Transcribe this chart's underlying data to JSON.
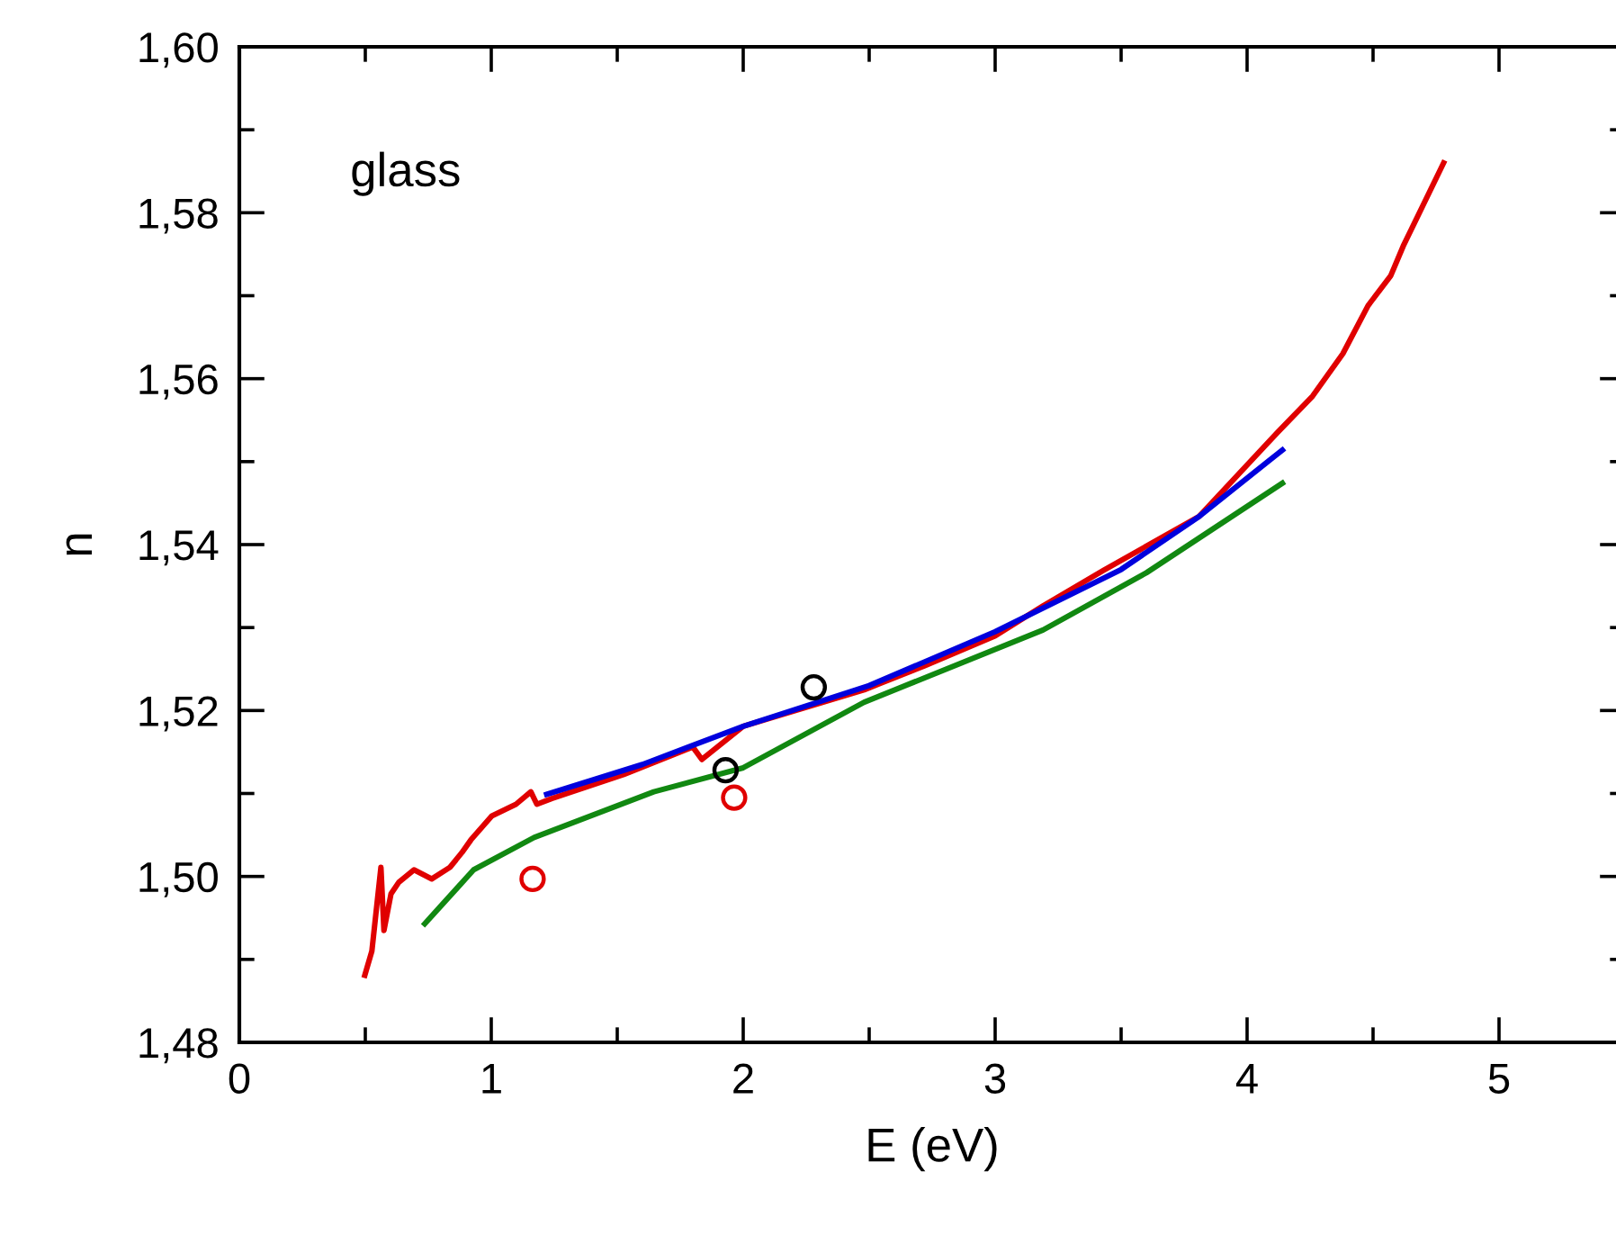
{
  "chart_data": {
    "type": "line",
    "xlabel": "E (eV)",
    "ylabel": "n",
    "annotations": [
      "glass"
    ],
    "xlim": [
      0,
      5.5
    ],
    "ylim": [
      1.48,
      1.6
    ],
    "xticks": [
      0,
      1,
      2,
      3,
      4,
      5
    ],
    "yticks": [
      {
        "value": 1.48,
        "label": "1,48"
      },
      {
        "value": 1.5,
        "label": "1,50"
      },
      {
        "value": 1.52,
        "label": "1,52"
      },
      {
        "value": 1.54,
        "label": "1,54"
      },
      {
        "value": 1.56,
        "label": "1,56"
      },
      {
        "value": 1.58,
        "label": "1,58"
      },
      {
        "value": 1.6,
        "label": "1,60"
      }
    ],
    "grid": false,
    "legend": false,
    "series": [
      {
        "color": "#e00000",
        "x": [
          0.498,
          0.526,
          0.562,
          0.574,
          0.602,
          0.633,
          0.693,
          0.764,
          0.836,
          0.884,
          0.919,
          1.002,
          1.098,
          1.157,
          1.181,
          1.24,
          1.526,
          1.8,
          1.836,
          2.0,
          2.24,
          2.48,
          2.72,
          3.0,
          3.19,
          3.43,
          3.81,
          4.12,
          4.26,
          4.38,
          4.48,
          4.57,
          4.62,
          4.78
        ],
        "values": [
          1.4881,
          1.491,
          1.5011,
          1.4935,
          1.4979,
          1.4993,
          1.5008,
          1.4997,
          1.5011,
          1.5029,
          1.5044,
          1.5073,
          1.5087,
          1.5102,
          1.5087,
          1.5094,
          1.5123,
          1.5156,
          1.5141,
          1.5181,
          1.5203,
          1.5225,
          1.5254,
          1.529,
          1.5326,
          1.5369,
          1.5434,
          1.5535,
          1.5579,
          1.563,
          1.5688,
          1.5724,
          1.576,
          1.586
        ]
      },
      {
        "color": "#0000dd",
        "x": [
          1.22,
          1.6,
          2.0,
          2.5,
          3.0,
          3.5,
          3.81,
          4.14
        ],
        "values": [
          1.5099,
          1.5135,
          1.5181,
          1.523,
          1.5295,
          1.537,
          1.5434,
          1.5514
        ]
      },
      {
        "color": "#118811",
        "x": [
          0.736,
          0.93,
          1.17,
          1.645,
          2.0,
          2.48,
          3.19,
          3.6,
          4.14
        ],
        "values": [
          1.4943,
          1.5008,
          1.5047,
          1.5102,
          1.5131,
          1.521,
          1.5297,
          1.5366,
          1.5474
        ]
      },
      {
        "type": "scatter",
        "color": "#e00000",
        "marker": "circle",
        "x": [
          1.164,
          1.964
        ],
        "values": [
          1.4997,
          1.5095
        ]
      },
      {
        "type": "scatter",
        "color": "#000000",
        "marker": "circle",
        "x": [
          1.93,
          2.28
        ],
        "values": [
          1.5128,
          1.5228
        ]
      }
    ]
  }
}
